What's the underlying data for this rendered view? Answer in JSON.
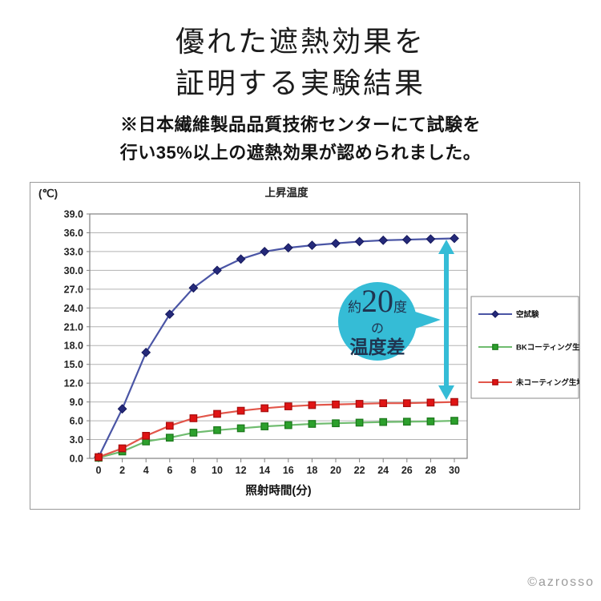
{
  "page": {
    "title_line1": "優れた遮熱効果を",
    "title_line2": "証明する実験結果",
    "note_line1": "※日本繊維製品品質技術センターにて試験を",
    "note_line2": "行い35%以上の遮熱効果が認められました。",
    "watermark": "©azrosso"
  },
  "chart_data": {
    "type": "line",
    "title": "上昇温度",
    "y_unit_label": "(℃)",
    "xlabel": "照射時間(分)",
    "ylim": [
      0,
      39
    ],
    "y_tick_step": 3,
    "grid": "horizontal",
    "legend_position": "right",
    "x": [
      0,
      2,
      4,
      6,
      8,
      10,
      12,
      14,
      16,
      18,
      20,
      22,
      24,
      26,
      28,
      30
    ],
    "series": [
      {
        "name": "空試験",
        "marker": "diamond",
        "marker_color": "#252a7a",
        "edge_color": "#14175c",
        "line_color": "#4a55a5",
        "values": [
          0.2,
          7.9,
          16.9,
          23.0,
          27.2,
          30.0,
          31.8,
          33.0,
          33.6,
          34.0,
          34.3,
          34.6,
          34.8,
          34.9,
          35.0,
          35.1
        ]
      },
      {
        "name": "BKコーティング生地",
        "marker": "square",
        "marker_color": "#2ca02c",
        "edge_color": "#1d7a1d",
        "line_color": "#6fbc6f",
        "values": [
          0.1,
          1.1,
          2.7,
          3.3,
          4.1,
          4.5,
          4.8,
          5.1,
          5.3,
          5.5,
          5.6,
          5.7,
          5.8,
          5.85,
          5.9,
          6.0
        ]
      },
      {
        "name": "未コーティング生地",
        "marker": "square",
        "marker_color": "#e01414",
        "edge_color": "#ab0d0d",
        "line_color": "#e2564a",
        "values": [
          0.2,
          1.6,
          3.6,
          5.2,
          6.4,
          7.1,
          7.6,
          8.0,
          8.3,
          8.5,
          8.6,
          8.7,
          8.8,
          8.8,
          8.9,
          9.0
        ]
      }
    ],
    "annotation": {
      "bubble": {
        "small_prefix": "約",
        "big": "20",
        "small_suffix": "度",
        "mid": "の",
        "bottom": "温度差"
      },
      "bubble_color": "#35bcd6",
      "bubble_text_color": "#203450",
      "arrow_color": "#35bcd6"
    }
  }
}
